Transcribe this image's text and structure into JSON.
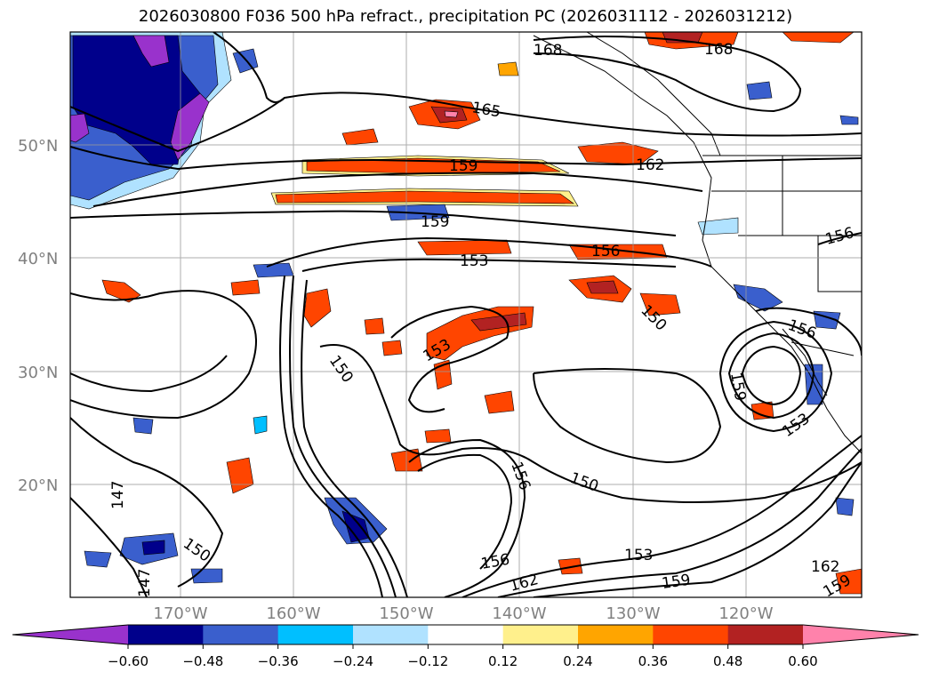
{
  "title": "2026030800 F036 500 hPa refract., precipitation PC (2026031112 - 2026031212)",
  "lat_labels": [
    "50°N",
    "40°N",
    "30°N",
    "20°N"
  ],
  "lon_labels": [
    "170°W",
    "160°W",
    "150°W",
    "140°W",
    "130°W",
    "120°W"
  ],
  "contour_labels": {
    "c168": "168",
    "c165": "165",
    "c162": "162",
    "c159": "159",
    "c156": "156",
    "c153": "153",
    "c150": "150",
    "c147": "147"
  },
  "colorbar": {
    "ticks": [
      "−0.60",
      "−0.48",
      "−0.36",
      "−0.24",
      "−0.12",
      "0.12",
      "0.24",
      "0.36",
      "0.48",
      "0.60"
    ],
    "colors": [
      "#9932cc",
      "#00008b",
      "#3a5fcd",
      "#00bfff",
      "#b0e2ff",
      "#ffffff",
      "#fff08c",
      "#ffa500",
      "#ff4500",
      "#b22222",
      "#ff82ab"
    ]
  },
  "palette": {
    "purple": "#9932cc",
    "navy": "#00008b",
    "blue": "#3a5fcd",
    "cyan": "#00bfff",
    "lightblue": "#b0e2ff",
    "yellow": "#fff08c",
    "orange": "#ffa500",
    "red": "#ff4500",
    "darkred": "#b22222",
    "pink": "#ff82ab"
  }
}
